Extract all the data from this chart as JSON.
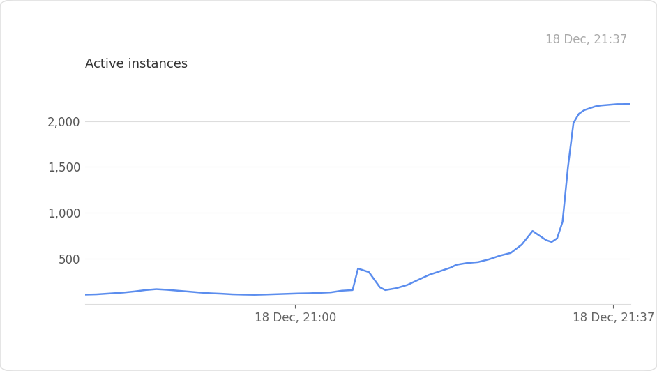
{
  "title_timestamp": "18 Dec, 21:37",
  "ylabel": "Active instances",
  "xlabel_ticks": [
    "18 Dec, 21:00",
    "18 Dec, 21:37"
  ],
  "legend_color": "#4d90fe",
  "line_color": "#5b8dee",
  "background_color": "#ffffff",
  "grid_color": "#dddddd",
  "border_color": "#e0e0e0",
  "ytick_color": "#555555",
  "xtick_color": "#666666",
  "timestamp_color": "#aaaaaa",
  "ylabel_color": "#333333",
  "legend_text_color": "#333333",
  "yticks": [
    500,
    1000,
    1500,
    2000
  ],
  "ylim": [
    0,
    2350
  ],
  "x": [
    0.0,
    0.02,
    0.03,
    0.05,
    0.07,
    0.09,
    0.11,
    0.13,
    0.15,
    0.17,
    0.19,
    0.21,
    0.23,
    0.25,
    0.27,
    0.29,
    0.31,
    0.33,
    0.35,
    0.37,
    0.39,
    0.41,
    0.43,
    0.45,
    0.47,
    0.49,
    0.5,
    0.52,
    0.54,
    0.55,
    0.57,
    0.59,
    0.61,
    0.63,
    0.65,
    0.67,
    0.68,
    0.7,
    0.72,
    0.74,
    0.76,
    0.78,
    0.8,
    0.82,
    0.845,
    0.855,
    0.865,
    0.875,
    0.885,
    0.895,
    0.905,
    0.915,
    0.925,
    0.935,
    0.945,
    0.955,
    0.965,
    0.975,
    0.985,
    1.0
  ],
  "y": [
    105,
    108,
    112,
    120,
    128,
    140,
    155,
    165,
    158,
    148,
    138,
    128,
    120,
    115,
    108,
    105,
    103,
    106,
    110,
    114,
    118,
    120,
    125,
    130,
    148,
    155,
    390,
    350,
    185,
    155,
    175,
    210,
    265,
    320,
    360,
    400,
    430,
    450,
    460,
    490,
    530,
    560,
    650,
    800,
    700,
    680,
    720,
    900,
    1500,
    1980,
    2080,
    2120,
    2140,
    2160,
    2170,
    2175,
    2180,
    2185,
    2185,
    2190
  ],
  "title_fontsize": 12,
  "ylabel_fontsize": 13,
  "tick_fontsize": 12,
  "legend_fontsize": 13,
  "xtick_pos_1": 0.385,
  "xtick_pos_2": 0.968
}
